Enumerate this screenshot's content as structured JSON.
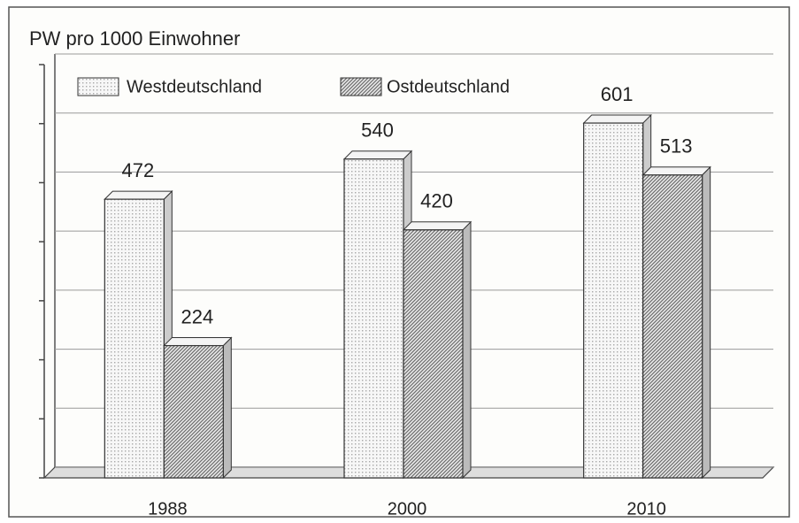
{
  "chart_data": {
    "type": "bar3d",
    "title": "PW pro 1000 Einwohner",
    "categories": [
      "1988",
      "2000",
      "2010"
    ],
    "series": [
      {
        "name": "Westdeutschland",
        "color": "#e4e4e4",
        "values": [
          472,
          540,
          601
        ]
      },
      {
        "name": "Ostdeutschland",
        "color": "#6e6e6e",
        "values": [
          224,
          420,
          513
        ]
      }
    ],
    "ylim": [
      0,
      700
    ],
    "yticks": [
      0,
      100,
      200,
      300,
      400,
      500,
      600,
      700
    ],
    "grid": true,
    "legend": "top"
  }
}
